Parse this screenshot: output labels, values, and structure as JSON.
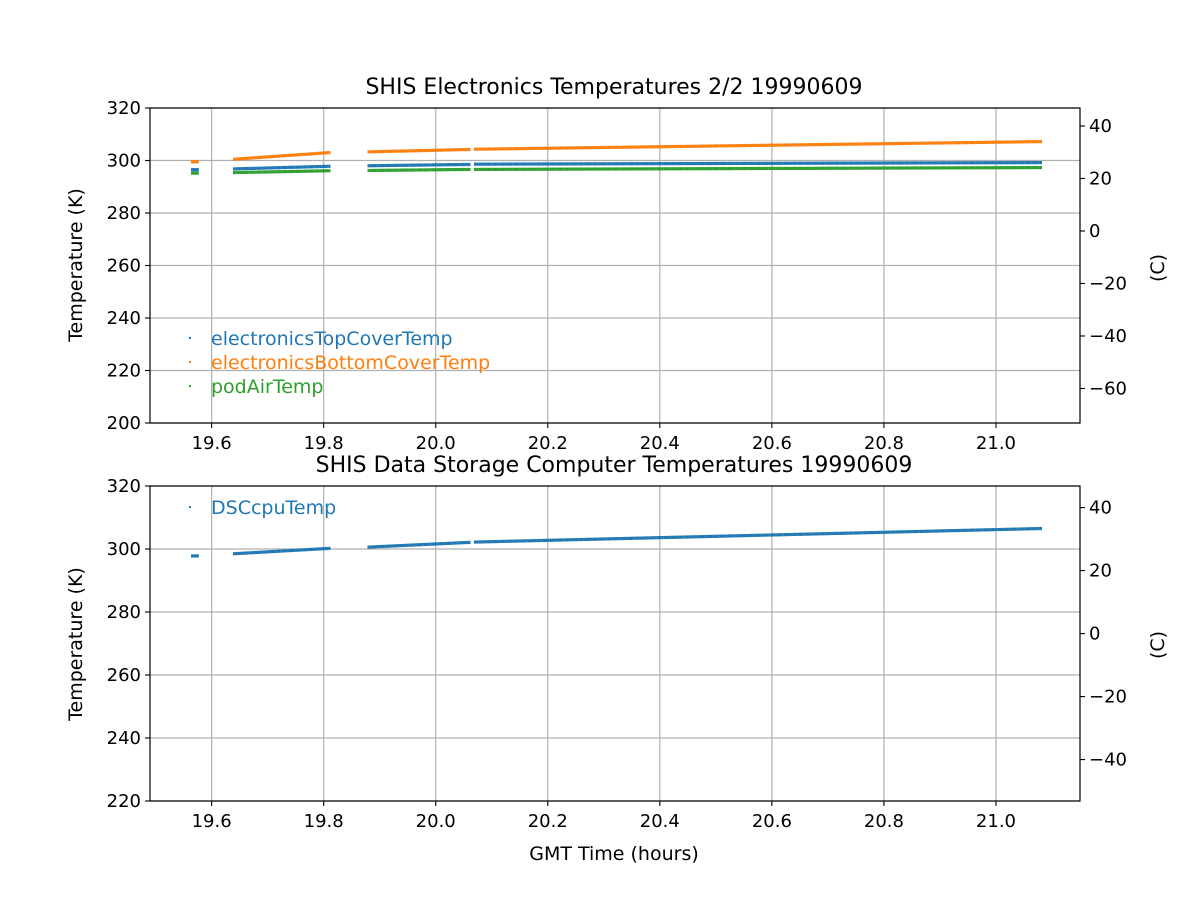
{
  "chart_data": [
    {
      "type": "scatter",
      "title": "SHIS Electronics Temperatures 2/2 19990609",
      "xlabel": "",
      "ylabel": "Temperature (K)",
      "y2label": "(C)",
      "xlim": [
        19.49,
        21.15
      ],
      "ylim": [
        200,
        320
      ],
      "xticks": [
        "19.6",
        "19.8",
        "20.0",
        "20.2",
        "20.4",
        "20.6",
        "20.8",
        "21.0"
      ],
      "yticks": [
        "200",
        "220",
        "240",
        "260",
        "280",
        "300",
        "320"
      ],
      "y2ticks": [
        "−60",
        "−40",
        "−20",
        "0",
        "20",
        "40"
      ],
      "grid": true,
      "legend_position": "lower-left",
      "series": [
        {
          "name": "electronicsTopCoverTemp",
          "color": "#1f77b4",
          "segments": [
            {
              "x0": 19.565,
              "x1": 19.575,
              "y0": 296.5,
              "y1": 296.5
            },
            {
              "x0": 19.64,
              "x1": 19.81,
              "y0": 296.8,
              "y1": 297.8
            },
            {
              "x0": 19.88,
              "x1": 20.06,
              "y0": 298.0,
              "y1": 298.5
            },
            {
              "x0": 20.07,
              "x1": 21.08,
              "y0": 298.6,
              "y1": 299.2
            }
          ]
        },
        {
          "name": "electronicsBottomCoverTemp",
          "color": "#ff7f0e",
          "segments": [
            {
              "x0": 19.565,
              "x1": 19.575,
              "y0": 299.5,
              "y1": 299.5
            },
            {
              "x0": 19.64,
              "x1": 19.81,
              "y0": 300.5,
              "y1": 303.0
            },
            {
              "x0": 19.88,
              "x1": 20.06,
              "y0": 303.3,
              "y1": 304.2
            },
            {
              "x0": 20.07,
              "x1": 21.08,
              "y0": 304.3,
              "y1": 307.2
            }
          ]
        },
        {
          "name": "podAirTemp",
          "color": "#2ca02c",
          "segments": [
            {
              "x0": 19.565,
              "x1": 19.575,
              "y0": 295.2,
              "y1": 295.2
            },
            {
              "x0": 19.64,
              "x1": 19.81,
              "y0": 295.4,
              "y1": 296.1
            },
            {
              "x0": 19.88,
              "x1": 20.06,
              "y0": 296.2,
              "y1": 296.6
            },
            {
              "x0": 20.07,
              "x1": 21.08,
              "y0": 296.6,
              "y1": 297.3
            }
          ]
        }
      ]
    },
    {
      "type": "scatter",
      "title": "SHIS Data Storage Computer Temperatures 19990609",
      "xlabel": "GMT Time (hours)",
      "ylabel": "Temperature (K)",
      "y2label": "(C)",
      "xlim": [
        19.49,
        21.15
      ],
      "ylim": [
        220,
        320
      ],
      "xticks": [
        "19.6",
        "19.8",
        "20.0",
        "20.2",
        "20.4",
        "20.6",
        "20.8",
        "21.0"
      ],
      "yticks": [
        "220",
        "240",
        "260",
        "280",
        "300",
        "320"
      ],
      "y2ticks": [
        "−40",
        "−20",
        "0",
        "20",
        "40"
      ],
      "grid": true,
      "legend_position": "upper-left",
      "series": [
        {
          "name": "DSCcpuTemp",
          "color": "#1f77b4",
          "segments": [
            {
              "x0": 19.565,
              "x1": 19.575,
              "y0": 297.8,
              "y1": 297.8
            },
            {
              "x0": 19.64,
              "x1": 19.81,
              "y0": 298.5,
              "y1": 300.2
            },
            {
              "x0": 19.88,
              "x1": 20.06,
              "y0": 300.6,
              "y1": 302.1
            },
            {
              "x0": 20.07,
              "x1": 21.08,
              "y0": 302.2,
              "y1": 306.5
            }
          ]
        }
      ]
    }
  ]
}
